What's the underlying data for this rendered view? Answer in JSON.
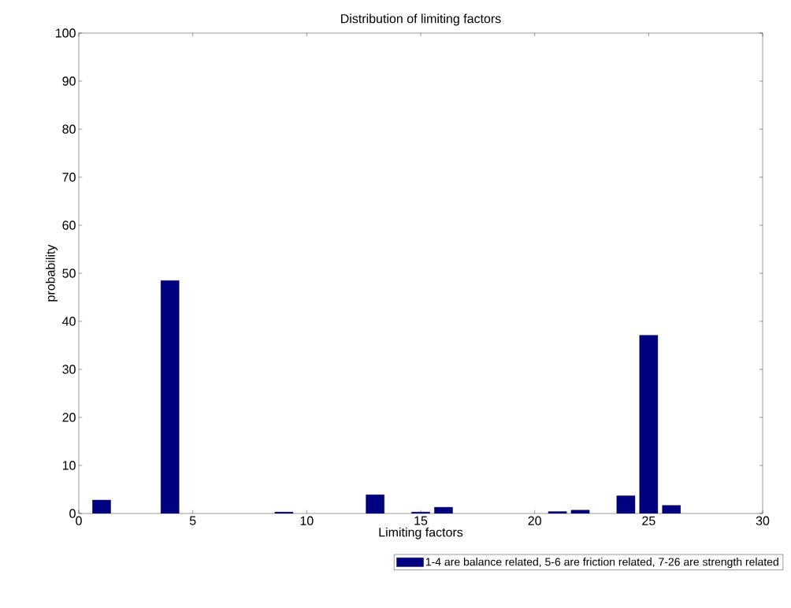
{
  "chart_data": {
    "type": "bar",
    "title": "Distribution of limiting factors",
    "xlabel": "Limiting factors",
    "ylabel": "probability",
    "x": [
      1,
      4,
      9,
      13,
      15,
      16,
      21,
      22,
      24,
      25,
      26
    ],
    "series": [
      {
        "name": "1-4 are balance related, 5-6 are friction related, 7-26 are strength related",
        "color": "#000080",
        "values": [
          2.8,
          48.5,
          0.3,
          3.9,
          0.3,
          1.3,
          0.4,
          0.7,
          3.7,
          37.1,
          1.7
        ]
      }
    ],
    "xlim": [
      0,
      30
    ],
    "xticks": [
      0,
      5,
      10,
      15,
      20,
      25,
      30
    ],
    "ylim": [
      0,
      100
    ],
    "yticks": [
      0,
      10,
      20,
      30,
      40,
      50,
      60,
      70,
      80,
      90,
      100
    ],
    "grid": false,
    "legend": "bottom"
  }
}
